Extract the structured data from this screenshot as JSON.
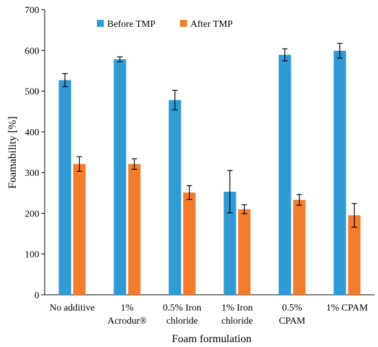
{
  "chart_data": {
    "type": "bar",
    "xlabel": "Foam formulation",
    "ylabel": "Foamability [%]",
    "ylim": [
      0,
      700
    ],
    "yticks": [
      "0",
      "100",
      "200",
      "300",
      "400",
      "500",
      "600",
      "700"
    ],
    "grid": false,
    "legend_position": "top",
    "categories": [
      [
        "No additive"
      ],
      [
        "1%",
        "Acrodur®"
      ],
      [
        "0.5% Iron",
        "chloride"
      ],
      [
        "1% Iron",
        "chloride"
      ],
      [
        "0.5%",
        "CPAM"
      ],
      [
        "1% CPAM"
      ]
    ],
    "series": [
      {
        "name": "Before TMP",
        "color": "#2e9bd6",
        "values": [
          527,
          578,
          478,
          253,
          589,
          599
        ],
        "errors": [
          16,
          6,
          24,
          52,
          15,
          18
        ]
      },
      {
        "name": "After TMP",
        "color": "#f47c2a",
        "values": [
          321,
          321,
          251,
          210,
          233,
          195
        ],
        "errors": [
          18,
          13,
          17,
          11,
          13,
          29
        ]
      }
    ]
  }
}
